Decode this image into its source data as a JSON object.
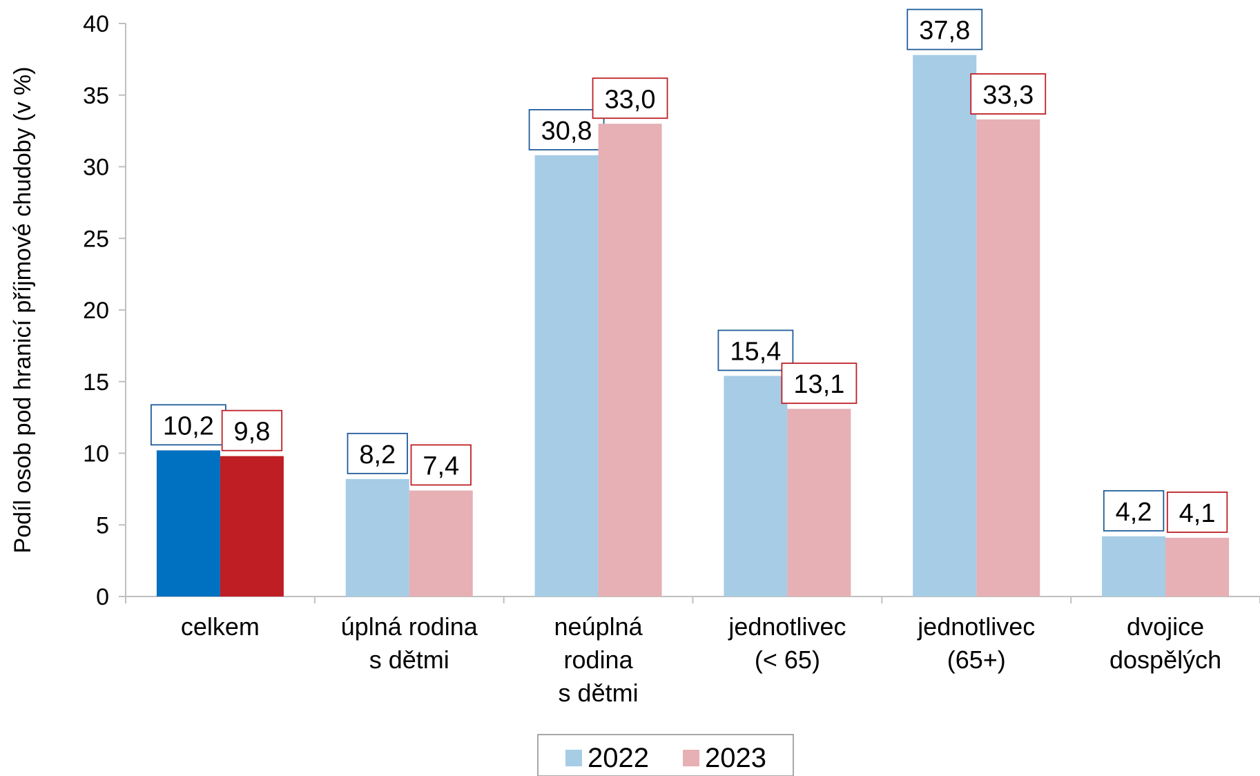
{
  "chart_data": {
    "type": "bar",
    "ylabel": "Podíl osob pod hranicí příjmové chudoby (v %)",
    "ylim": [
      0,
      40
    ],
    "yticks": [
      "0",
      "5",
      "10",
      "15",
      "20",
      "25",
      "30",
      "35",
      "40"
    ],
    "grid": false,
    "legend_position": "bottom",
    "categories": [
      [
        "celkem"
      ],
      [
        "úplná rodina",
        "s dětmi"
      ],
      [
        "neúplná",
        "rodina",
        "s dětmi"
      ],
      [
        "jednotlivec",
        "(< 65)"
      ],
      [
        "jednotlivec",
        "(65+)"
      ],
      [
        "dvojice",
        "dospělých"
      ]
    ],
    "series": [
      {
        "name": "2022",
        "values": [
          10.2,
          8.2,
          30.8,
          15.4,
          37.8,
          4.2
        ],
        "labels": [
          "10,2",
          "8,2",
          "30,8",
          "15,4",
          "37,8",
          "4,2"
        ],
        "color": "#a6cce6",
        "highlight_color": "#0070c0",
        "label_border_color": "#1f5c99"
      },
      {
        "name": "2023",
        "values": [
          9.8,
          7.4,
          33.0,
          13.1,
          33.3,
          4.1
        ],
        "labels": [
          "9,8",
          "7,4",
          "33,0",
          "13,1",
          "33,3",
          "4,1"
        ],
        "color": "#e6b0b4",
        "highlight_color": "#be1e24",
        "label_border_color": "#be1e24"
      }
    ],
    "highlighted_category_index": 0
  }
}
